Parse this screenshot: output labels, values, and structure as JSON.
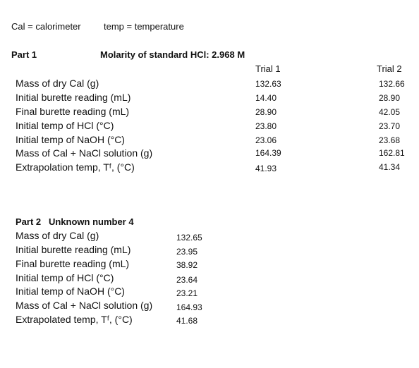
{
  "legend": {
    "cal": "Cal = calorimeter",
    "temp": "temp = temperature"
  },
  "part1": {
    "title": "Part 1",
    "molarity_label": "Molarity of standard HCl: 2.968 M",
    "trial_headers": [
      "Trial 1",
      "Trial 2"
    ],
    "rows": [
      {
        "label": "Mass of dry Cal (g)",
        "trial1": "132.63",
        "trial2": "132.66"
      },
      {
        "label": "Initial burette reading (mL)",
        "trial1": "14.40",
        "trial2": "28.90"
      },
      {
        "label": "Final burette reading (mL)",
        "trial1": "28.90",
        "trial2": "42.05"
      },
      {
        "label": "Initial temp of HCl (°C)",
        "trial1": "23.80",
        "trial2": "23.70"
      },
      {
        "label": "Initial temp of NaOH (°C)",
        "trial1": "23.06",
        "trial2": "23.68"
      },
      {
        "label": "Mass of Cal + NaCl solution (g)",
        "trial1": "164.39",
        "trial2": "162.81"
      },
      {
        "label": "Extrapolation temp, Tᶠ, (°C)",
        "trial1": "41.93",
        "trial2": "41.34"
      }
    ]
  },
  "part2": {
    "title": "Part 2   Unknown number 4",
    "rows": [
      {
        "label": "Mass of dry Cal (g)",
        "value": "132.65"
      },
      {
        "label": "Initial burette reading (mL)",
        "value": "23.95"
      },
      {
        "label": "Final burette reading (mL)",
        "value": "38.92"
      },
      {
        "label": "Initial temp of HCl (°C)",
        "value": "23.64"
      },
      {
        "label": "Initial temp of NaOH (°C)",
        "value": "23.21"
      },
      {
        "label": "Mass of Cal + NaCl solution (g)",
        "value": "164.93"
      },
      {
        "label": "Extrapolated temp, Tᶠ, (°C)",
        "value": "41.68"
      }
    ]
  }
}
